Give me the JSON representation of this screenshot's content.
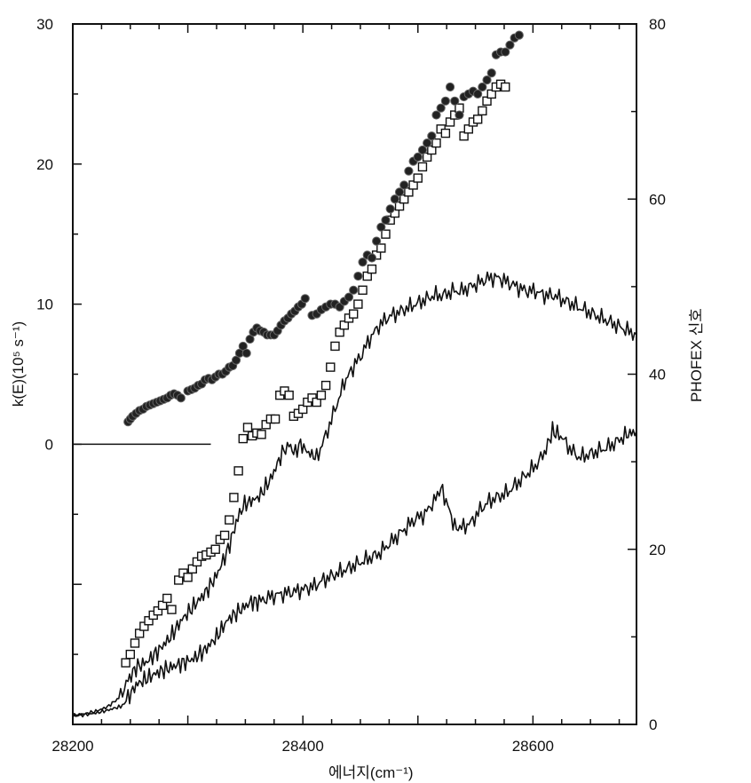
{
  "chart_data": {
    "type": "scatter",
    "xlabel": "에너지(cm⁻¹)",
    "ylabel_left": "k(E)(10⁵ s⁻¹)",
    "ylabel_right": "PHOFEX 신호",
    "xlim": [
      28200,
      28690
    ],
    "ylim_left": [
      -20,
      30
    ],
    "ylim_right": [
      0,
      80
    ],
    "x_ticks": [
      28200,
      28400,
      28600
    ],
    "y_left_ticks": [
      0,
      10,
      20,
      30
    ],
    "y_right_ticks": [
      0,
      20,
      40,
      60,
      80
    ],
    "grid": false,
    "legend": "none",
    "zero_line": {
      "y": 0,
      "x_start": 28200,
      "x_end": 28320
    },
    "series": [
      {
        "marker": "filled-circle",
        "axis": "left",
        "points": [
          [
            28248,
            1.6
          ],
          [
            28250,
            1.8
          ],
          [
            28252,
            2.0
          ],
          [
            28255,
            2.2
          ],
          [
            28258,
            2.4
          ],
          [
            28261,
            2.5
          ],
          [
            28264,
            2.7
          ],
          [
            28267,
            2.8
          ],
          [
            28270,
            2.9
          ],
          [
            28273,
            3.0
          ],
          [
            28276,
            3.1
          ],
          [
            28279,
            3.2
          ],
          [
            28282,
            3.3
          ],
          [
            28285,
            3.5
          ],
          [
            28288,
            3.6
          ],
          [
            28291,
            3.5
          ],
          [
            28294,
            3.3
          ],
          [
            28300,
            3.8
          ],
          [
            28303,
            3.9
          ],
          [
            28306,
            4.0
          ],
          [
            28309,
            4.2
          ],
          [
            28312,
            4.3
          ],
          [
            28315,
            4.6
          ],
          [
            28318,
            4.7
          ],
          [
            28321,
            4.6
          ],
          [
            28324,
            4.8
          ],
          [
            28327,
            5.0
          ],
          [
            28330,
            5.0
          ],
          [
            28333,
            5.2
          ],
          [
            28336,
            5.5
          ],
          [
            28339,
            5.6
          ],
          [
            28342,
            6.0
          ],
          [
            28345,
            6.5
          ],
          [
            28348,
            7.0
          ],
          [
            28351,
            6.5
          ],
          [
            28354,
            7.5
          ],
          [
            28357,
            8.0
          ],
          [
            28360,
            8.3
          ],
          [
            28363,
            8.1
          ],
          [
            28366,
            8.0
          ],
          [
            28369,
            7.8
          ],
          [
            28372,
            7.8
          ],
          [
            28375,
            7.8
          ],
          [
            28378,
            8.1
          ],
          [
            28381,
            8.5
          ],
          [
            28384,
            8.8
          ],
          [
            28387,
            9.0
          ],
          [
            28390,
            9.3
          ],
          [
            28393,
            9.5
          ],
          [
            28396,
            9.8
          ],
          [
            28399,
            10.0
          ],
          [
            28402,
            10.4
          ],
          [
            28408,
            9.2
          ],
          [
            28412,
            9.3
          ],
          [
            28416,
            9.6
          ],
          [
            28420,
            9.8
          ],
          [
            28424,
            10.0
          ],
          [
            28428,
            10.0
          ],
          [
            28432,
            9.8
          ],
          [
            28436,
            10.2
          ],
          [
            28440,
            10.5
          ],
          [
            28444,
            11.0
          ],
          [
            28448,
            12.0
          ],
          [
            28452,
            13.0
          ],
          [
            28456,
            13.5
          ],
          [
            28460,
            13.3
          ],
          [
            28464,
            14.5
          ],
          [
            28468,
            15.5
          ],
          [
            28472,
            16.0
          ],
          [
            28476,
            16.8
          ],
          [
            28480,
            17.5
          ],
          [
            28484,
            18.0
          ],
          [
            28488,
            18.5
          ],
          [
            28492,
            19.5
          ],
          [
            28496,
            20.2
          ],
          [
            28500,
            20.5
          ],
          [
            28504,
            21.0
          ],
          [
            28508,
            21.5
          ],
          [
            28512,
            22.0
          ],
          [
            28516,
            23.5
          ],
          [
            28520,
            24.0
          ],
          [
            28524,
            24.5
          ],
          [
            28528,
            25.5
          ],
          [
            28532,
            24.5
          ],
          [
            28536,
            23.5
          ],
          [
            28540,
            24.8
          ],
          [
            28544,
            25.0
          ],
          [
            28548,
            25.2
          ],
          [
            28552,
            25.0
          ],
          [
            28556,
            25.5
          ],
          [
            28560,
            26.0
          ],
          [
            28564,
            26.5
          ],
          [
            28568,
            27.8
          ],
          [
            28572,
            28.0
          ],
          [
            28576,
            28.0
          ],
          [
            28580,
            28.5
          ],
          [
            28584,
            29.0
          ],
          [
            28588,
            29.2
          ]
        ]
      },
      {
        "marker": "open-square",
        "axis": "left",
        "points": [
          [
            28246,
            -15.6
          ],
          [
            28250,
            -15.0
          ],
          [
            28254,
            -14.2
          ],
          [
            28258,
            -13.5
          ],
          [
            28262,
            -13.0
          ],
          [
            28266,
            -12.6
          ],
          [
            28270,
            -12.2
          ],
          [
            28274,
            -11.9
          ],
          [
            28278,
            -11.5
          ],
          [
            28282,
            -11.0
          ],
          [
            28286,
            -11.8
          ],
          [
            28292,
            -9.7
          ],
          [
            28296,
            -9.2
          ],
          [
            28300,
            -9.5
          ],
          [
            28304,
            -8.9
          ],
          [
            28308,
            -8.4
          ],
          [
            28312,
            -8.0
          ],
          [
            28316,
            -7.9
          ],
          [
            28320,
            -7.7
          ],
          [
            28324,
            -7.5
          ],
          [
            28328,
            -6.8
          ],
          [
            28332,
            -6.5
          ],
          [
            28336,
            -5.4
          ],
          [
            28340,
            -3.8
          ],
          [
            28344,
            -1.9
          ],
          [
            28348,
            0.4
          ],
          [
            28352,
            1.2
          ],
          [
            28356,
            0.6
          ],
          [
            28360,
            0.8
          ],
          [
            28364,
            0.7
          ],
          [
            28368,
            1.4
          ],
          [
            28372,
            1.8
          ],
          [
            28376,
            1.8
          ],
          [
            28380,
            3.5
          ],
          [
            28384,
            3.8
          ],
          [
            28388,
            3.5
          ],
          [
            28392,
            2.0
          ],
          [
            28396,
            2.2
          ],
          [
            28400,
            2.5
          ],
          [
            28404,
            3.0
          ],
          [
            28408,
            3.3
          ],
          [
            28412,
            3.0
          ],
          [
            28416,
            3.5
          ],
          [
            28420,
            4.2
          ],
          [
            28424,
            5.5
          ],
          [
            28428,
            7.0
          ],
          [
            28432,
            8.0
          ],
          [
            28436,
            8.5
          ],
          [
            28440,
            9.0
          ],
          [
            28444,
            9.3
          ],
          [
            28448,
            10.0
          ],
          [
            28452,
            11.0
          ],
          [
            28456,
            12.0
          ],
          [
            28460,
            12.5
          ],
          [
            28464,
            13.5
          ],
          [
            28468,
            14.0
          ],
          [
            28472,
            15.0
          ],
          [
            28476,
            16.0
          ],
          [
            28480,
            16.5
          ],
          [
            28484,
            17.0
          ],
          [
            28488,
            17.5
          ],
          [
            28492,
            18.0
          ],
          [
            28496,
            18.5
          ],
          [
            28500,
            19.0
          ],
          [
            28504,
            19.8
          ],
          [
            28508,
            20.5
          ],
          [
            28512,
            21.0
          ],
          [
            28516,
            21.5
          ],
          [
            28520,
            22.5
          ],
          [
            28524,
            22.2
          ],
          [
            28528,
            23.0
          ],
          [
            28532,
            23.5
          ],
          [
            28536,
            24.0
          ],
          [
            28540,
            22.0
          ],
          [
            28544,
            22.5
          ],
          [
            28548,
            23.0
          ],
          [
            28552,
            23.2
          ],
          [
            28556,
            23.8
          ],
          [
            28560,
            24.5
          ],
          [
            28564,
            25.0
          ],
          [
            28568,
            25.5
          ],
          [
            28572,
            25.7
          ],
          [
            28576,
            25.5
          ]
        ]
      },
      {
        "marker": "line",
        "axis": "right",
        "points": [
          [
            28200,
            1.0
          ],
          [
            28210,
            1.2
          ],
          [
            28220,
            1.5
          ],
          [
            28230,
            2.0
          ],
          [
            28240,
            3.0
          ],
          [
            28248,
            5.0
          ],
          [
            28255,
            6.5
          ],
          [
            28265,
            7.2
          ],
          [
            28275,
            8.5
          ],
          [
            28285,
            10.0
          ],
          [
            28295,
            12.0
          ],
          [
            28305,
            13.5
          ],
          [
            28315,
            15.0
          ],
          [
            28325,
            17.0
          ],
          [
            28335,
            20.0
          ],
          [
            28342,
            23.0
          ],
          [
            28348,
            25.0
          ],
          [
            28355,
            25.5
          ],
          [
            28362,
            26.0
          ],
          [
            28372,
            28.0
          ],
          [
            28382,
            31.0
          ],
          [
            28388,
            32.0
          ],
          [
            28392,
            31.0
          ],
          [
            28398,
            32.0
          ],
          [
            28405,
            31.0
          ],
          [
            28412,
            30.5
          ],
          [
            28420,
            33.0
          ],
          [
            28428,
            36.0
          ],
          [
            28436,
            39.0
          ],
          [
            28442,
            40.5
          ],
          [
            28450,
            42.0
          ],
          [
            28458,
            44.0
          ],
          [
            28466,
            45.5
          ],
          [
            28474,
            46.5
          ],
          [
            28482,
            47.0
          ],
          [
            28490,
            47.5
          ],
          [
            28498,
            48.0
          ],
          [
            28506,
            48.5
          ],
          [
            28514,
            49.0
          ],
          [
            28522,
            49.0
          ],
          [
            28530,
            49.5
          ],
          [
            28538,
            49.5
          ],
          [
            28546,
            50.0
          ],
          [
            28554,
            50.5
          ],
          [
            28562,
            51.0
          ],
          [
            28570,
            51.0
          ],
          [
            28578,
            50.5
          ],
          [
            28586,
            50.0
          ],
          [
            28594,
            49.5
          ],
          [
            28602,
            49.5
          ],
          [
            28610,
            49.0
          ],
          [
            28618,
            49.0
          ],
          [
            28626,
            48.5
          ],
          [
            28634,
            48.0
          ],
          [
            28642,
            47.5
          ],
          [
            28650,
            47.0
          ],
          [
            28658,
            46.5
          ],
          [
            28666,
            46.0
          ],
          [
            28674,
            45.5
          ],
          [
            28682,
            45.0
          ],
          [
            28690,
            44.5
          ]
        ]
      },
      {
        "marker": "line",
        "axis": "right",
        "points": [
          [
            28200,
            1.0
          ],
          [
            28210,
            1.1
          ],
          [
            28220,
            1.3
          ],
          [
            28230,
            1.6
          ],
          [
            28240,
            2.0
          ],
          [
            28248,
            3.0
          ],
          [
            28255,
            4.5
          ],
          [
            28265,
            5.3
          ],
          [
            28275,
            6.0
          ],
          [
            28285,
            6.5
          ],
          [
            28295,
            7.0
          ],
          [
            28305,
            7.5
          ],
          [
            28315,
            8.5
          ],
          [
            28325,
            10.0
          ],
          [
            28335,
            12.0
          ],
          [
            28345,
            13.0
          ],
          [
            28355,
            14.0
          ],
          [
            28362,
            14.0
          ],
          [
            28370,
            14.5
          ],
          [
            28378,
            14.8
          ],
          [
            28386,
            15.0
          ],
          [
            28394,
            15.2
          ],
          [
            28402,
            15.5
          ],
          [
            28410,
            15.8
          ],
          [
            28418,
            16.5
          ],
          [
            28426,
            17.0
          ],
          [
            28434,
            17.5
          ],
          [
            28442,
            18.0
          ],
          [
            28450,
            18.5
          ],
          [
            28458,
            19.0
          ],
          [
            28466,
            19.5
          ],
          [
            28474,
            20.5
          ],
          [
            28482,
            21.5
          ],
          [
            28490,
            22.5
          ],
          [
            28498,
            23.5
          ],
          [
            28506,
            24.0
          ],
          [
            28514,
            25.5
          ],
          [
            28520,
            27.0
          ],
          [
            28526,
            25.0
          ],
          [
            28532,
            22.5
          ],
          [
            28538,
            22.5
          ],
          [
            28546,
            23.0
          ],
          [
            28554,
            24.5
          ],
          [
            28562,
            25.5
          ],
          [
            28570,
            26.0
          ],
          [
            28578,
            26.5
          ],
          [
            28586,
            27.5
          ],
          [
            28594,
            28.5
          ],
          [
            28602,
            29.5
          ],
          [
            28610,
            31.0
          ],
          [
            28617,
            33.5
          ],
          [
            28624,
            33.0
          ],
          [
            28632,
            31.5
          ],
          [
            28640,
            30.5
          ],
          [
            28648,
            30.8
          ],
          [
            28656,
            31.2
          ],
          [
            28664,
            31.6
          ],
          [
            28672,
            32.2
          ],
          [
            28680,
            33.0
          ],
          [
            28690,
            33.5
          ]
        ]
      }
    ]
  }
}
